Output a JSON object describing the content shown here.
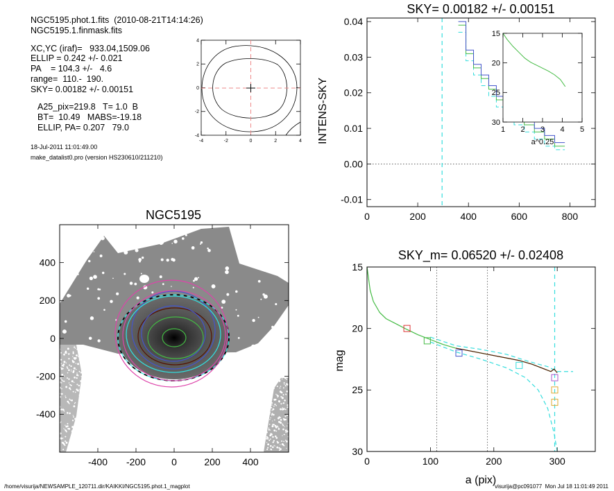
{
  "info": {
    "file_line": "NGC5195.phot.1.fits  (2010-08-21T14:14:26)",
    "mask_line": "NGC5195.1.finmask.fits",
    "xcyc": "XC,YC (iraf)=   933.04,1509.06",
    "ellip": "ELLIP = 0.242 +/- 0.021",
    "pa": "PA    = 104.3 +/-   4.6",
    "range": "range=  110.-  190.",
    "sky": "SKY= 0.00182 +/- 0.00151",
    "a25": "A25_pix=219.8   T= 1.0  B",
    "bt": "BT=  10.49   MABS=-19.18",
    "ellip_pa": "ELLIP, PA= 0.207   79.0",
    "date": "18-Jul-2011 11:01:49.00",
    "program": "make_datalist0.pro (version HS230610/211210)"
  },
  "footer": {
    "left": "/home/visurija/NEWSAMPLE_120711.dir/KAIKKI/NGC5195.phot.1_magplot",
    "right": "visurija@pc091077  Mon Jul 18 11:01:49 2011"
  },
  "colors": {
    "green": "#44bb44",
    "blue": "#4455cc",
    "cyan": "#33dddd",
    "magenta": "#dd44aa",
    "red": "#dd3333",
    "orange": "#ddaa33",
    "purple": "#aa55cc",
    "dark_red": "#551100",
    "pink_dash": "#ee8888"
  },
  "chart_data": [
    {
      "id": "contour",
      "type": "line",
      "title": "",
      "xticks": [
        "-4",
        "-2",
        "0",
        "2",
        "4"
      ],
      "yticks": [
        "-4",
        "-2",
        "0",
        "2",
        "4"
      ],
      "xlim": [
        -4,
        4
      ],
      "ylim": [
        -4,
        4
      ]
    },
    {
      "id": "profile",
      "type": "line",
      "title": "SKY= 0.00182 +/- 0.00151",
      "xlabel": "",
      "ylabel": "INTENS-SKY",
      "xlim": [
        0,
        900
      ],
      "ylim": [
        -0.012,
        0.041
      ],
      "xticks": [
        "0",
        "200",
        "400",
        "600",
        "800"
      ],
      "yticks": [
        "0.04",
        "0.03",
        "0.02",
        "0.01",
        "0.00",
        "-0.01"
      ],
      "sky_range_a": 296,
      "steps": {
        "x": [
          360,
          390,
          420,
          450,
          480,
          510,
          540,
          580,
          620,
          660,
          700,
          740
        ],
        "blue": [
          0.04,
          0.032,
          0.028,
          0.025,
          0.022,
          0.019,
          0.017,
          0.014,
          0.012,
          0.01,
          0.008,
          0.006
        ],
        "green": [
          0.039,
          0.031,
          0.027,
          0.024,
          0.021,
          0.018,
          0.016,
          0.013,
          0.011,
          0.009,
          0.007,
          0.005
        ],
        "cyan": [
          0.037,
          0.029,
          0.025,
          0.022,
          0.019,
          0.016,
          0.014,
          0.011,
          0.009,
          0.007,
          0.005,
          0.004
        ]
      },
      "inset": {
        "xlabel": "a^0.25",
        "xticks": [
          "1",
          "2",
          "3",
          "4",
          "5"
        ],
        "yticks": [
          "15",
          "20",
          "25",
          "30"
        ],
        "xlim": [
          1,
          5
        ],
        "ylim": [
          15,
          30
        ],
        "curve_x": [
          1.0,
          1.2,
          1.5,
          1.8,
          2.1,
          2.4,
          2.7,
          3.0,
          3.3,
          3.6,
          3.9,
          4.15
        ],
        "curve_y": [
          15.0,
          16.0,
          17.2,
          18.2,
          19.2,
          19.9,
          20.4,
          20.9,
          21.4,
          22.0,
          22.8,
          24.0
        ]
      }
    },
    {
      "id": "image",
      "type": "scatter",
      "title": "NGC5195",
      "xlim": [
        -600,
        600
      ],
      "ylim": [
        -600,
        600
      ],
      "xticks": [
        "-400",
        "-200",
        "0",
        "200",
        "400"
      ],
      "yticks": [
        "400",
        "200",
        "0",
        "-200",
        "-400"
      ]
    },
    {
      "id": "mag",
      "type": "line",
      "title": "SKY_m=  0.06520 +/- 0.02408",
      "xlabel": "a (pix)",
      "ylabel": "mag",
      "xlim": [
        0,
        360
      ],
      "ylim": [
        15,
        30
      ],
      "xticks": [
        "0",
        "100",
        "200",
        "300"
      ],
      "yticks": [
        "15",
        "20",
        "25",
        "30"
      ],
      "vlines": [
        110,
        190
      ],
      "sky_range_a": 296,
      "profile": {
        "x": [
          0,
          5,
          10,
          20,
          30,
          45,
          60,
          80,
          100,
          120,
          140,
          160,
          180,
          200,
          220,
          240,
          260,
          270,
          280,
          285,
          290,
          295,
          300
        ],
        "y": [
          15.0,
          16.9,
          17.8,
          18.7,
          19.2,
          19.6,
          20.0,
          20.5,
          20.9,
          21.3,
          21.6,
          21.8,
          22.0,
          22.2,
          22.4,
          22.6,
          22.9,
          23.1,
          23.3,
          23.4,
          23.5,
          23.3,
          23.6
        ]
      },
      "cyan_lower": {
        "x": [
          100,
          140,
          180,
          220,
          250,
          270,
          285,
          295,
          300
        ],
        "y": [
          21.1,
          21.9,
          22.5,
          23.2,
          24.0,
          25.0,
          26.5,
          28.5,
          30.0
        ]
      },
      "markers": [
        {
          "a": 63,
          "mag": 20.0,
          "color": "red"
        },
        {
          "a": 95,
          "mag": 21.0,
          "color": "green"
        },
        {
          "a": 145,
          "mag": 22.0,
          "color": "blue"
        },
        {
          "a": 240,
          "mag": 23.0,
          "color": "cyan"
        },
        {
          "a": 296,
          "mag": 24.0,
          "color": "purple"
        },
        {
          "a": 296,
          "mag": 25.0,
          "color": "orange"
        },
        {
          "a": 296,
          "mag": 26.0,
          "color": "orange"
        }
      ]
    }
  ]
}
